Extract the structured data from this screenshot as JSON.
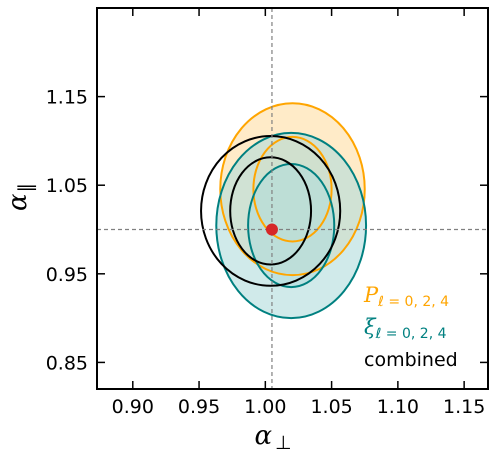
{
  "chart_data": {
    "type": "contour",
    "xlabel_symbol": "α",
    "xlabel_sub": "⊥",
    "ylabel_symbol": "α",
    "ylabel_sub": "∥",
    "xlim": [
      0.873,
      1.168
    ],
    "ylim": [
      0.82,
      1.25
    ],
    "xticks": [
      0.9,
      0.95,
      1.0,
      1.05,
      1.1,
      1.15
    ],
    "xtick_labels": [
      "0.90",
      "0.95",
      "1.00",
      "1.05",
      "1.10",
      "1.15"
    ],
    "yticks": [
      0.85,
      0.95,
      1.05,
      1.15
    ],
    "ytick_labels": [
      "0.85",
      "0.95",
      "1.05",
      "1.15"
    ],
    "reference_lines": {
      "x": 1.005,
      "y": 1.0
    },
    "fiducial_point": {
      "x": 1.005,
      "y": 1.0,
      "color": "#d62728"
    },
    "series": [
      {
        "name": "P",
        "name_sub": "ℓ = 0, 2, 4",
        "color": "#ffa500",
        "fill": "#ffe4b5",
        "center": [
          1.0205,
          1.0455
        ],
        "contours": [
          {
            "level": "2-sigma",
            "half_width_x": 0.0545,
            "half_height_y": 0.097
          },
          {
            "level": "1-sigma",
            "half_width_x": 0.0295,
            "half_height_y": 0.059
          }
        ]
      },
      {
        "name": "ξ",
        "name_sub": "ℓ = 0, 2, 4",
        "color": "#008080",
        "fill": "#b0dcdc",
        "center": [
          1.0195,
          1.0045
        ],
        "contours": [
          {
            "level": "2-sigma",
            "half_width_x": 0.0565,
            "half_height_y": 0.1045
          },
          {
            "level": "1-sigma",
            "half_width_x": 0.0325,
            "half_height_y": 0.0695
          }
        ]
      },
      {
        "name": "combined",
        "color": "#000000",
        "fill": "none",
        "center": [
          1.004,
          1.021
        ],
        "contours": [
          {
            "level": "2-sigma",
            "half_width_x": 0.0525,
            "half_height_y": 0.0845
          },
          {
            "level": "1-sigma",
            "half_width_x": 0.0305,
            "half_height_y": 0.0605
          }
        ]
      }
    ],
    "legend_position": "bottom-right",
    "grid": false
  }
}
